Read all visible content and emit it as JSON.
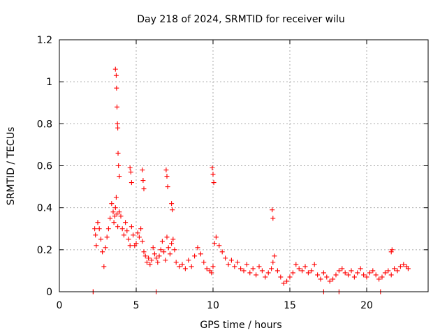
{
  "chart_data": {
    "type": "scatter",
    "title": "Day 218 of 2024, SRMTID for receiver wilu",
    "xlabel": "GPS time / hours",
    "ylabel": "SRMTID / TECUs",
    "xlim": [
      0,
      24
    ],
    "ylim": [
      0,
      1.2
    ],
    "xticks": [
      0,
      5,
      10,
      15,
      20
    ],
    "yticks": [
      0,
      0.2,
      0.4,
      0.6,
      0.8,
      1,
      1.2
    ],
    "xtick_labels": [
      "0",
      "5",
      "10",
      "15",
      "20"
    ],
    "ytick_labels": [
      "0",
      "0.2",
      "0.4",
      "0.6",
      "0.8",
      "1",
      "1.2"
    ],
    "grid": true,
    "marker": "+",
    "color": "#ff0000",
    "series": [
      {
        "name": "SRMTID",
        "x": [
          2.2,
          2.3,
          2.35,
          2.4,
          2.5,
          2.6,
          2.7,
          2.8,
          2.9,
          3.0,
          3.1,
          3.2,
          3.3,
          3.4,
          3.5,
          3.55,
          3.6,
          3.65,
          3.7,
          3.75,
          3.8,
          3.9,
          4.0,
          4.1,
          4.2,
          4.3,
          4.4,
          4.5,
          4.6,
          4.7,
          4.8,
          4.9,
          5.0,
          5.1,
          5.2,
          5.3,
          5.4,
          5.5,
          5.6,
          5.7,
          5.8,
          5.9,
          6.0,
          6.1,
          6.2,
          6.3,
          6.4,
          6.5,
          6.6,
          6.7,
          6.8,
          6.9,
          7.0,
          7.1,
          7.2,
          7.3,
          7.4,
          7.5,
          7.6,
          7.8,
          8.0,
          8.2,
          8.4,
          8.6,
          8.8,
          9.0,
          9.2,
          9.4,
          9.6,
          9.8,
          9.9,
          10.0,
          10.1,
          10.2,
          10.4,
          10.6,
          10.8,
          11.0,
          11.2,
          11.4,
          11.6,
          11.8,
          12.0,
          12.2,
          12.4,
          12.6,
          12.8,
          13.0,
          13.2,
          13.4,
          13.6,
          13.8,
          13.9,
          14.0,
          14.2,
          14.4,
          14.6,
          14.8,
          15.0,
          15.2,
          15.4,
          15.6,
          15.8,
          16.0,
          16.2,
          16.4,
          16.6,
          16.8,
          17.0,
          17.2,
          17.4,
          17.6,
          17.8,
          18.0,
          18.2,
          18.4,
          18.6,
          18.8,
          19.0,
          19.2,
          19.4,
          19.6,
          19.8,
          20.0,
          20.2,
          20.4,
          20.6,
          20.8,
          21.0,
          21.2,
          21.4,
          21.6,
          21.8,
          22.0,
          22.2,
          22.4,
          22.6,
          22.7,
          3.65,
          3.7,
          3.72,
          3.75,
          3.78,
          3.8,
          3.82,
          3.85,
          3.9,
          4.6,
          4.65,
          4.7,
          5.4,
          5.45,
          5.5,
          6.95,
          7.0,
          7.05,
          7.3,
          7.35,
          9.95,
          10.0,
          10.05,
          13.85,
          13.9,
          21.6,
          21.65,
          2.2,
          6.3,
          17.2,
          18.2,
          20.9
        ],
        "y": [
          0.0,
          0.3,
          0.27,
          0.22,
          0.33,
          0.3,
          0.25,
          0.19,
          0.12,
          0.21,
          0.26,
          0.3,
          0.35,
          0.42,
          0.38,
          0.33,
          0.36,
          0.4,
          0.45,
          0.37,
          0.31,
          0.38,
          0.36,
          0.3,
          0.27,
          0.33,
          0.29,
          0.25,
          0.22,
          0.31,
          0.27,
          0.22,
          0.23,
          0.28,
          0.26,
          0.3,
          0.24,
          0.19,
          0.17,
          0.14,
          0.16,
          0.13,
          0.15,
          0.21,
          0.18,
          0.16,
          0.14,
          0.17,
          0.2,
          0.24,
          0.19,
          0.15,
          0.26,
          0.21,
          0.18,
          0.23,
          0.25,
          0.2,
          0.14,
          0.12,
          0.13,
          0.11,
          0.15,
          0.12,
          0.17,
          0.21,
          0.18,
          0.14,
          0.11,
          0.1,
          0.09,
          0.12,
          0.23,
          0.26,
          0.22,
          0.19,
          0.16,
          0.13,
          0.15,
          0.12,
          0.14,
          0.11,
          0.1,
          0.13,
          0.09,
          0.11,
          0.08,
          0.12,
          0.1,
          0.07,
          0.09,
          0.11,
          0.14,
          0.17,
          0.1,
          0.07,
          0.04,
          0.05,
          0.07,
          0.09,
          0.13,
          0.11,
          0.1,
          0.12,
          0.09,
          0.1,
          0.13,
          0.08,
          0.06,
          0.09,
          0.07,
          0.05,
          0.06,
          0.08,
          0.1,
          0.11,
          0.09,
          0.08,
          0.1,
          0.07,
          0.09,
          0.11,
          0.08,
          0.07,
          0.09,
          0.1,
          0.08,
          0.06,
          0.07,
          0.09,
          0.1,
          0.08,
          0.11,
          0.1,
          0.12,
          0.13,
          0.12,
          0.11,
          1.06,
          1.03,
          0.97,
          0.88,
          0.8,
          0.78,
          0.66,
          0.6,
          0.55,
          0.59,
          0.57,
          0.52,
          0.58,
          0.53,
          0.49,
          0.58,
          0.55,
          0.5,
          0.42,
          0.39,
          0.59,
          0.56,
          0.52,
          0.39,
          0.35,
          0.19,
          0.2,
          0.0,
          0.0,
          0.0,
          0.0,
          0.0
        ]
      }
    ]
  }
}
